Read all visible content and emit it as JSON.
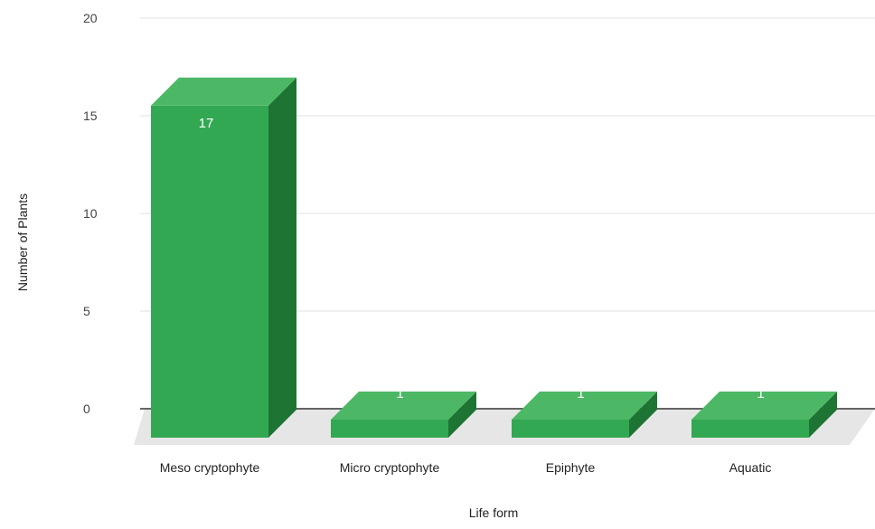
{
  "chart_data": {
    "type": "bar",
    "style": "3d",
    "categories": [
      "Meso cryptophyte",
      "Micro cryptophyte",
      "Epiphyte",
      "Aquatic"
    ],
    "values": [
      17,
      1,
      1,
      1
    ],
    "data_labels": [
      "17",
      "1",
      "1",
      "1"
    ],
    "xlabel": "Life form",
    "ylabel": "Number of Plants",
    "ylim": [
      0,
      20
    ],
    "yticks": [
      "0",
      "5",
      "10",
      "15",
      "20"
    ],
    "grid": true,
    "legend": "none",
    "colors": {
      "bar_front": "#33a852",
      "bar_top": "#4cb865",
      "bar_side": "#1e7433",
      "floor": "#e6e6e6",
      "gridline": "#e0e0e0",
      "baseline": "#333333"
    }
  }
}
